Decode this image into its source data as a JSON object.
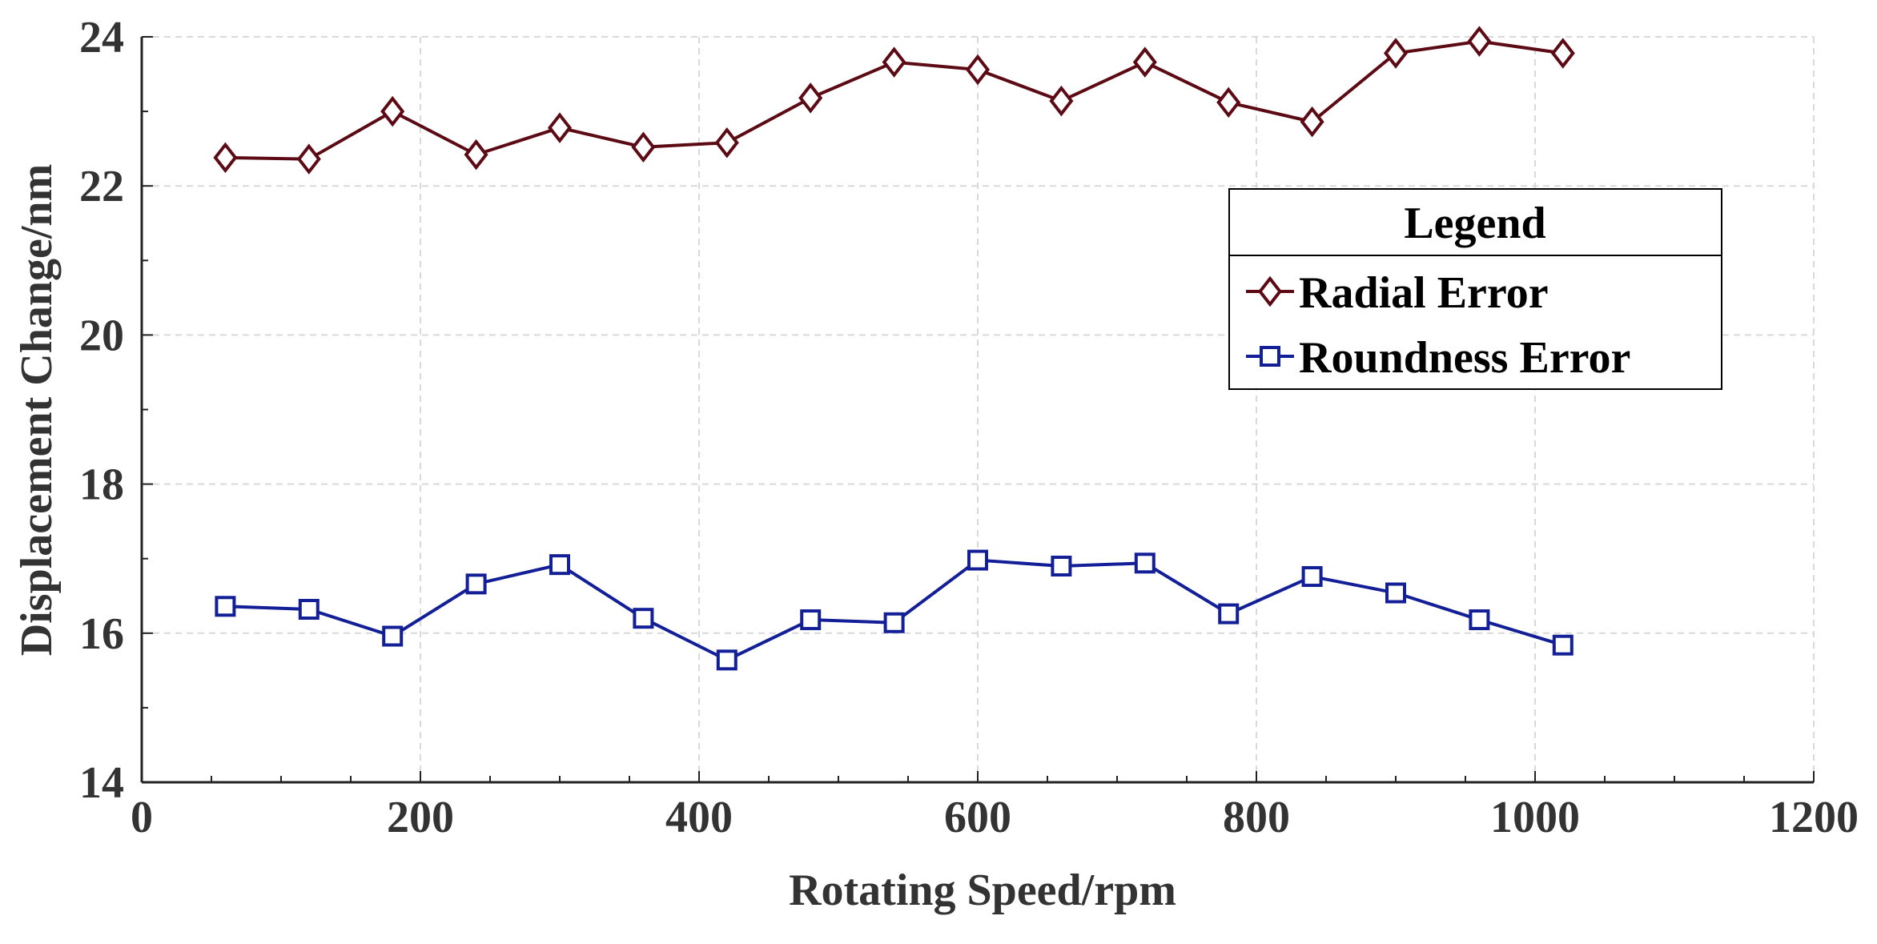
{
  "chart_data": {
    "type": "line",
    "title": "",
    "xlabel": "Rotating Speed/rpm",
    "ylabel": "Displacement Change/nm",
    "xlim": [
      0,
      1200
    ],
    "ylim": [
      14,
      24
    ],
    "xticks": [
      0,
      200,
      400,
      600,
      800,
      1000,
      1200
    ],
    "yticks": [
      14,
      16,
      18,
      20,
      22,
      24
    ],
    "grid": true,
    "legend": {
      "title": "Legend",
      "position": "top-right"
    },
    "x": [
      60,
      120,
      180,
      240,
      300,
      360,
      420,
      480,
      540,
      600,
      660,
      720,
      780,
      840,
      900,
      960,
      1020
    ],
    "series": [
      {
        "name": "Radial Error",
        "marker": "diamond",
        "color": "#5c0a14",
        "values": [
          22.38,
          22.36,
          23.0,
          22.42,
          22.78,
          22.52,
          22.58,
          23.18,
          23.66,
          23.56,
          23.14,
          23.66,
          23.12,
          22.86,
          23.78,
          23.94,
          23.78
        ]
      },
      {
        "name": "Roundness Error",
        "marker": "square",
        "color": "#131f96",
        "values": [
          16.36,
          16.32,
          15.96,
          16.66,
          16.92,
          16.2,
          15.64,
          16.18,
          16.14,
          16.98,
          16.9,
          16.94,
          16.26,
          16.76,
          16.54,
          16.18,
          15.84
        ]
      }
    ]
  }
}
